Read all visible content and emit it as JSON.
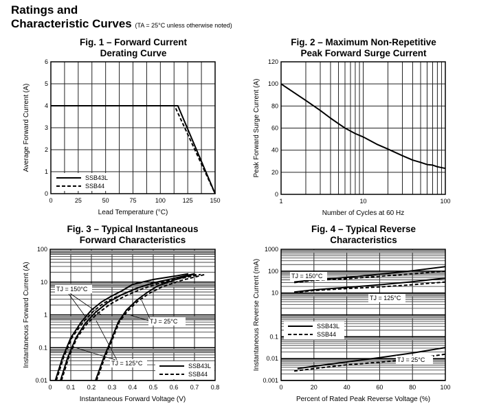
{
  "header": {
    "title_line1": "Ratings and",
    "title_line2": "Characteristic Curves",
    "note": "(TA = 25°C unless otherwise noted)"
  },
  "chart_data": [
    {
      "id": "fig1",
      "type": "line",
      "title_line1": "Fig. 1 – Forward Current",
      "title_line2": "Derating Curve",
      "xlabel": "Lead Temperature (°C)",
      "ylabel": "Average Forward Current (A)",
      "xscale": "linear",
      "yscale": "linear",
      "xlim": [
        0,
        150
      ],
      "ylim": [
        0,
        6
      ],
      "xticks": [
        0,
        25,
        50,
        75,
        100,
        125,
        150
      ],
      "xtick_labels": [
        "0",
        "25",
        "50",
        "75",
        "100",
        "125",
        "150"
      ],
      "yticks": [
        0,
        1,
        2,
        3,
        4,
        5,
        6
      ],
      "ytick_labels": [
        "0",
        "1",
        "2",
        "3",
        "4",
        "5",
        "6"
      ],
      "x_gridlines": [
        0,
        12.5,
        25,
        37.5,
        50,
        62.5,
        75,
        87.5,
        100,
        112.5,
        125,
        137.5,
        150
      ],
      "y_gridlines": [
        0,
        1,
        2,
        3,
        4,
        5,
        6
      ],
      "grid": true,
      "legend": "bottom-left",
      "series": [
        {
          "name": "SSB43L",
          "style": "solid",
          "points": [
            [
              0,
              4
            ],
            [
              116,
              4
            ],
            [
              150,
              0
            ]
          ]
        },
        {
          "name": "SSB44",
          "style": "dashed",
          "points": [
            [
              0,
              4
            ],
            [
              113,
              4
            ],
            [
              150,
              0
            ]
          ]
        }
      ]
    },
    {
      "id": "fig2",
      "type": "line",
      "title_line1": "Fig. 2 – Maximum Non-Repetitive",
      "title_line2": "Peak Forward Surge Current",
      "xlabel": "Number of Cycles at 60 Hz",
      "ylabel": "Peak Forward Surge Current (A)",
      "xscale": "log",
      "yscale": "linear",
      "xlim": [
        1,
        100
      ],
      "ylim": [
        0,
        120
      ],
      "xticks": [
        1,
        10,
        100
      ],
      "xtick_labels": [
        "1",
        "10",
        "100"
      ],
      "yticks": [
        0,
        20,
        40,
        60,
        80,
        100,
        120
      ],
      "ytick_labels": [
        "0",
        "20",
        "40",
        "60",
        "80",
        "100",
        "120"
      ],
      "grid": true,
      "legend": "none",
      "series": [
        {
          "name": "Surge",
          "style": "solid",
          "points": [
            [
              1,
              100
            ],
            [
              2,
              85
            ],
            [
              3,
              76
            ],
            [
              4,
              69
            ],
            [
              5,
              64
            ],
            [
              6,
              60
            ],
            [
              8,
              55
            ],
            [
              10,
              52
            ],
            [
              15,
              45
            ],
            [
              20,
              41
            ],
            [
              30,
              35
            ],
            [
              40,
              31
            ],
            [
              50,
              29
            ],
            [
              60,
              27
            ],
            [
              70,
              26.5
            ],
            [
              80,
              25
            ],
            [
              100,
              23.5
            ]
          ]
        }
      ]
    },
    {
      "id": "fig3",
      "type": "line",
      "title_line1": "Fig. 3 – Typical Instantaneous",
      "title_line2": "Forward Characteristics",
      "xlabel": "Instantaneous Forward Voltage (V)",
      "ylabel": "Instantaneous Forward Current (A)",
      "xscale": "linear",
      "yscale": "log",
      "xlim": [
        0,
        0.8
      ],
      "ylim": [
        0.01,
        100
      ],
      "xticks": [
        0,
        0.1,
        0.2,
        0.3,
        0.4,
        0.5,
        0.6,
        0.7,
        0.8
      ],
      "xtick_labels": [
        "0",
        "0.1",
        "0.2",
        "0.3",
        "0.4",
        "0.5",
        "0.6",
        "0.7",
        "0.8"
      ],
      "yticks": [
        0.01,
        0.1,
        1,
        10,
        100
      ],
      "ytick_labels": [
        "0.01",
        "0.1",
        "1",
        "10",
        "100"
      ],
      "grid": true,
      "legend": "bottom-right",
      "annotations": [
        "TJ = 150°C",
        "TJ = 125°C",
        "TJ = 25°C"
      ],
      "series": [
        {
          "name": "SSB43L TJ=150°C",
          "style": "solid",
          "points": [
            [
              0.025,
              0.01
            ],
            [
              0.06,
              0.05
            ],
            [
              0.1,
              0.2
            ],
            [
              0.15,
              0.6
            ],
            [
              0.2,
              1.4
            ],
            [
              0.25,
              2.5
            ],
            [
              0.3,
              3.8
            ],
            [
              0.35,
              5.5
            ],
            [
              0.4,
              8.5
            ],
            [
              0.5,
              12
            ],
            [
              0.6,
              15
            ],
            [
              0.67,
              18
            ]
          ]
        },
        {
          "name": "SSB44 TJ=150°C",
          "style": "dashed",
          "points": [
            [
              0.03,
              0.01
            ],
            [
              0.065,
              0.05
            ],
            [
              0.105,
              0.2
            ],
            [
              0.16,
              0.6
            ],
            [
              0.21,
              1.3
            ],
            [
              0.26,
              2.3
            ],
            [
              0.32,
              3.5
            ],
            [
              0.38,
              5
            ],
            [
              0.45,
              7.5
            ],
            [
              0.55,
              11
            ],
            [
              0.65,
              14
            ],
            [
              0.71,
              17
            ]
          ]
        },
        {
          "name": "SSB43L TJ=125°C",
          "style": "solid",
          "points": [
            [
              0.05,
              0.01
            ],
            [
              0.085,
              0.05
            ],
            [
              0.125,
              0.2
            ],
            [
              0.17,
              0.55
            ],
            [
              0.22,
              1.2
            ],
            [
              0.28,
              2.4
            ],
            [
              0.35,
              4.2
            ],
            [
              0.42,
              6.5
            ],
            [
              0.5,
              9.5
            ],
            [
              0.6,
              13
            ],
            [
              0.7,
              18
            ]
          ]
        },
        {
          "name": "SSB44 TJ=125°C",
          "style": "dashed",
          "points": [
            [
              0.055,
              0.01
            ],
            [
              0.09,
              0.05
            ],
            [
              0.13,
              0.2
            ],
            [
              0.18,
              0.55
            ],
            [
              0.23,
              1.1
            ],
            [
              0.29,
              2.1
            ],
            [
              0.36,
              3.7
            ],
            [
              0.44,
              6
            ],
            [
              0.52,
              8.8
            ],
            [
              0.62,
              12.5
            ],
            [
              0.73,
              17
            ]
          ]
        },
        {
          "name": "SSB43L TJ=25°C",
          "style": "solid",
          "points": [
            [
              0.22,
              0.01
            ],
            [
              0.26,
              0.05
            ],
            [
              0.3,
              0.2
            ],
            [
              0.33,
              0.6
            ],
            [
              0.37,
              1.4
            ],
            [
              0.42,
              2.8
            ],
            [
              0.47,
              4.8
            ],
            [
              0.52,
              7.5
            ],
            [
              0.6,
              11.5
            ],
            [
              0.7,
              17.5
            ]
          ]
        },
        {
          "name": "SSB44 TJ=25°C",
          "style": "dashed",
          "points": [
            [
              0.225,
              0.01
            ],
            [
              0.265,
              0.05
            ],
            [
              0.305,
              0.2
            ],
            [
              0.335,
              0.6
            ],
            [
              0.375,
              1.3
            ],
            [
              0.425,
              2.6
            ],
            [
              0.48,
              4.5
            ],
            [
              0.54,
              7
            ],
            [
              0.63,
              11
            ],
            [
              0.75,
              17
            ]
          ]
        }
      ]
    },
    {
      "id": "fig4",
      "type": "line",
      "title_line1": "Fig. 4 – Typical Reverse",
      "title_line2": "Characteristics",
      "xlabel": "Percent of Rated Peak Reverse Voltage (%)",
      "ylabel": "Instantaneous Reverse Current (mA)",
      "xscale": "linear",
      "yscale": "log",
      "xlim": [
        0,
        100
      ],
      "ylim": [
        0.001,
        1000
      ],
      "xticks": [
        0,
        20,
        40,
        60,
        80,
        100
      ],
      "xtick_labels": [
        "0",
        "20",
        "40",
        "60",
        "80",
        "100"
      ],
      "yticks": [
        0.001,
        0.01,
        0.1,
        10,
        100,
        1000
      ],
      "ytick_labels": [
        "0.001",
        "0.01",
        "0.1",
        "10",
        "100",
        "1000"
      ],
      "grid": true,
      "legend": "center-left",
      "annotations": [
        "TJ = 150°C",
        "TJ = 125°C",
        "TJ = 25°C"
      ],
      "series": [
        {
          "name": "SSB43L TJ=150°C",
          "style": "solid",
          "points": [
            [
              8,
              32
            ],
            [
              20,
              40
            ],
            [
              40,
              52
            ],
            [
              60,
              72
            ],
            [
              80,
              105
            ],
            [
              100,
              160
            ]
          ]
        },
        {
          "name": "SSB44 TJ=150°C",
          "style": "dashed",
          "points": [
            [
              8,
              30
            ],
            [
              20,
              38
            ],
            [
              40,
              45
            ],
            [
              60,
              58
            ],
            [
              80,
              75
            ],
            [
              100,
              100
            ]
          ]
        },
        {
          "name": "SSB43L TJ=125°C",
          "style": "solid",
          "points": [
            [
              8,
              11
            ],
            [
              20,
              14
            ],
            [
              40,
              18
            ],
            [
              60,
              24
            ],
            [
              80,
              33
            ],
            [
              100,
              48
            ]
          ]
        },
        {
          "name": "SSB44 TJ=125°C",
          "style": "dashed",
          "points": [
            [
              8,
              10.5
            ],
            [
              20,
              13
            ],
            [
              40,
              16
            ],
            [
              60,
              19
            ],
            [
              80,
              24
            ],
            [
              100,
              32
            ]
          ]
        },
        {
          "name": "SSB43L TJ=25°C",
          "style": "solid",
          "points": [
            [
              10,
              0.0035
            ],
            [
              20,
              0.0045
            ],
            [
              40,
              0.007
            ],
            [
              60,
              0.011
            ],
            [
              80,
              0.018
            ],
            [
              100,
              0.032
            ]
          ]
        },
        {
          "name": "SSB44 TJ=25°C",
          "style": "dashed",
          "points": [
            [
              8,
              0.0027
            ],
            [
              20,
              0.0035
            ],
            [
              40,
              0.0052
            ],
            [
              60,
              0.0068
            ],
            [
              80,
              0.0095
            ],
            [
              100,
              0.016
            ]
          ]
        }
      ]
    }
  ],
  "legend_labels": {
    "solid": "SSB43L",
    "dashed": "SSB44"
  }
}
